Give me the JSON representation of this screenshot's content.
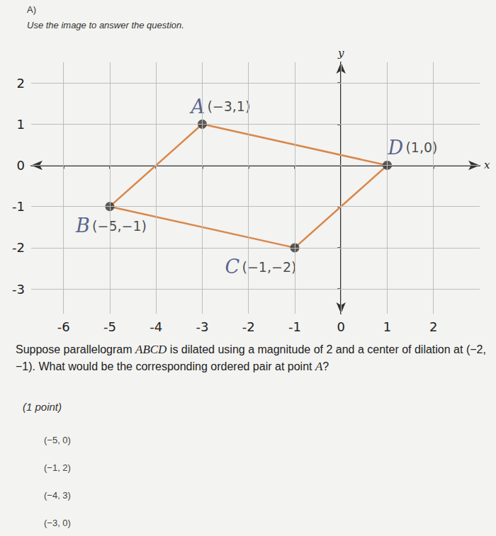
{
  "header": {
    "part": "A)",
    "instruction": "Use the image to answer the question."
  },
  "chart_data": {
    "type": "scatter",
    "xlabel": "x",
    "ylabel": "y",
    "xlim": [
      -6.7,
      3.0
    ],
    "ylim": [
      -3.6,
      2.5
    ],
    "xticks": [
      -6,
      -5,
      -4,
      -3,
      -2,
      -1,
      0,
      1,
      2
    ],
    "yticks": [
      -3,
      -2,
      -1,
      0,
      1,
      2
    ],
    "grid": true,
    "series": [
      {
        "type": "line",
        "color": "#d9874a",
        "line_style": "solid",
        "points": [
          "A",
          "B",
          "C",
          "D",
          "A"
        ]
      },
      {
        "type": "scatter",
        "color": "#333333",
        "marker": "circle",
        "points": [
          {
            "label": "A",
            "x": -3,
            "y": 1,
            "coord_label": "(−3,1)"
          },
          {
            "label": "B",
            "x": -5,
            "y": -1,
            "coord_label": "(−5,−1)"
          },
          {
            "label": "C",
            "x": -1,
            "y": -2,
            "coord_label": "(−1,−2)"
          },
          {
            "label": "D",
            "x": 1,
            "y": 0,
            "coord_label": "(1,0)"
          }
        ]
      }
    ]
  },
  "question": [
    {
      "text": "Suppose parallelogram "
    },
    {
      "text": "ABCD",
      "italic": true
    },
    {
      "text": " is dilated using a magnitude of 2 and a center of dilation at (−2, −1). What would be the corresponding ordered pair at point "
    },
    {
      "text": "A",
      "italic": true
    },
    {
      "text": "?"
    }
  ],
  "points_note": "(1 point)",
  "options": [
    "(−5, 0)",
    "(−1, 2)",
    "(−4, 3)",
    "(−3, 0)"
  ]
}
